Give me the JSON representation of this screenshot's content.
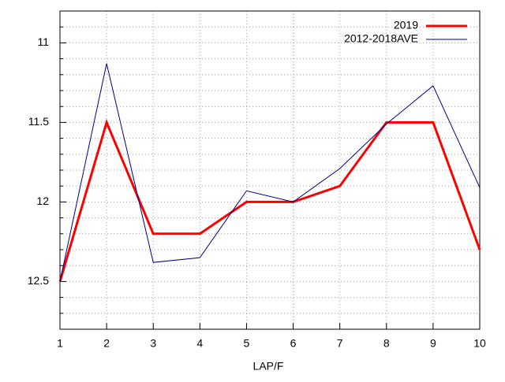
{
  "chart_data": {
    "type": "line",
    "x_label": "LAP/F",
    "x": [
      1,
      2,
      3,
      4,
      5,
      6,
      7,
      8,
      9,
      10
    ],
    "series": [
      {
        "name": "2019",
        "color": "#ff0000",
        "width": 3,
        "values": [
          12.5,
          11.5,
          12.2,
          12.2,
          12.0,
          12.0,
          11.9,
          11.5,
          11.5,
          12.3
        ]
      },
      {
        "name": "2012-2018AVE",
        "color": "#000080",
        "width": 1,
        "values": [
          12.5,
          11.13,
          12.38,
          12.35,
          11.93,
          12.0,
          11.79,
          11.51,
          11.27,
          11.91
        ]
      }
    ],
    "xlim": [
      1,
      10
    ],
    "xticks": [
      1,
      2,
      3,
      4,
      5,
      6,
      7,
      8,
      9,
      10
    ],
    "ylim": [
      10.8,
      12.8
    ],
    "y_reversed": true,
    "yticks": [
      11,
      11.5,
      12,
      12.5
    ],
    "yminorticks": [
      10.9,
      11.1,
      11.2,
      11.3,
      11.4,
      11.6,
      11.7,
      11.8,
      11.9,
      12.1,
      12.2,
      12.3,
      12.4,
      12.6,
      12.7
    ],
    "grid": true,
    "legend": "top-right"
  }
}
